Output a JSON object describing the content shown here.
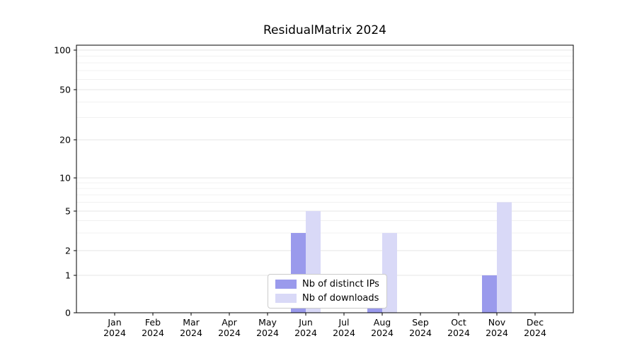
{
  "page": {
    "background": "#ffffff"
  },
  "chart_data": {
    "type": "bar",
    "title": "ResidualMatrix 2024",
    "categories": [
      "Jan",
      "Feb",
      "Mar",
      "Apr",
      "May",
      "Jun",
      "Jul",
      "Aug",
      "Sep",
      "Oct",
      "Nov",
      "Dec"
    ],
    "year_label": "2024",
    "series": [
      {
        "name": "Nb of distinct IPs",
        "color": "#9a9aec",
        "values": [
          0,
          0,
          0,
          0,
          0,
          3,
          0,
          1,
          0,
          0,
          1,
          0
        ]
      },
      {
        "name": "Nb of downloads",
        "color": "#d9d9f7",
        "values": [
          0,
          0,
          0,
          0,
          0,
          5,
          0,
          3,
          0,
          0,
          6,
          0
        ]
      }
    ],
    "yticks": [
      0,
      1,
      2,
      5,
      10,
      20,
      50,
      100
    ],
    "ylim": [
      0,
      110
    ],
    "scale": "symlog",
    "grid": true,
    "legend_position": "lower center",
    "xlabel": "",
    "ylabel": ""
  }
}
